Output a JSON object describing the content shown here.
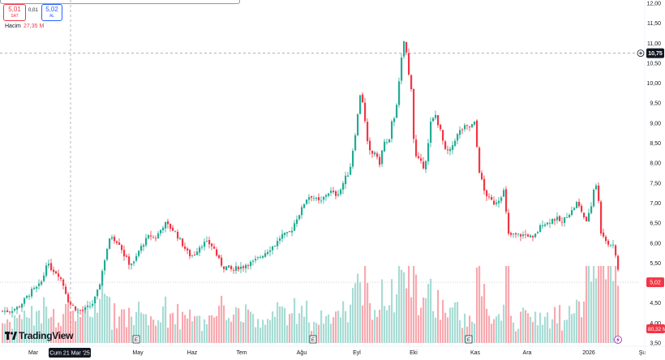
{
  "header": {
    "bid_price": "5,01",
    "bid_label": "SAT",
    "spread": "0,01",
    "ask_price": "5,02",
    "ask_label": "AL",
    "volume_label": "Hacim",
    "volume_value": "27,35 M"
  },
  "logo_text": "TradingView",
  "crosshair": {
    "date_label": "Cum 21 Mar '25",
    "price_label": "10,75"
  },
  "last_price_label": "5,02",
  "volume_axis_label": "80,32 M",
  "event_marker": "E",
  "colors": {
    "up": "#22ab94",
    "down": "#f23645",
    "up_volume": "#a8dcd5",
    "down_volume": "#f8aab0",
    "crosshair": "#9598a1"
  },
  "chart_data": {
    "type": "candlestick",
    "y_axis": {
      "ticks": [
        "12,00",
        "11,50",
        "11,00",
        "10,50",
        "10,00",
        "9,50",
        "9,00",
        "8,50",
        "8,00",
        "7,50",
        "7,00",
        "6,50",
        "6,00",
        "5,50",
        "5,00",
        "4,50",
        "4,00",
        "3,50"
      ],
      "range": [
        3.5,
        12.0
      ],
      "position": "right"
    },
    "x_axis": {
      "labels": [
        "Mar",
        "Nis",
        "May",
        "Haz",
        "Tem",
        "Ağu",
        "Eyl",
        "Eki",
        "Kas",
        "Ara",
        "2026",
        "Şu"
      ]
    },
    "event_markers_at": [
      "May",
      "Ağu",
      "Kas"
    ],
    "price_knots": [
      [
        0,
        4.3
      ],
      [
        10,
        4.3
      ],
      [
        22,
        4.4
      ],
      [
        30,
        4.6
      ],
      [
        38,
        4.8
      ],
      [
        46,
        4.9
      ],
      [
        52,
        5.1
      ],
      [
        56,
        5.5
      ],
      [
        60,
        5.4
      ],
      [
        66,
        5.3
      ],
      [
        72,
        5.2
      ],
      [
        78,
        4.9
      ],
      [
        84,
        4.5
      ],
      [
        90,
        4.4
      ],
      [
        96,
        4.3
      ],
      [
        104,
        4.35
      ],
      [
        112,
        4.45
      ],
      [
        118,
        4.7
      ],
      [
        122,
        5.0
      ],
      [
        126,
        5.4
      ],
      [
        130,
        5.8
      ],
      [
        136,
        6.2
      ],
      [
        140,
        6.1
      ],
      [
        146,
        6.0
      ],
      [
        152,
        5.7
      ],
      [
        158,
        5.5
      ],
      [
        164,
        5.5
      ],
      [
        170,
        5.8
      ],
      [
        176,
        6.0
      ],
      [
        184,
        6.2
      ],
      [
        190,
        6.1
      ],
      [
        196,
        6.3
      ],
      [
        202,
        6.5
      ],
      [
        208,
        6.4
      ],
      [
        214,
        6.3
      ],
      [
        220,
        6.1
      ],
      [
        226,
        5.9
      ],
      [
        232,
        5.7
      ],
      [
        238,
        5.7
      ],
      [
        244,
        5.9
      ],
      [
        250,
        6.0
      ],
      [
        256,
        6.0
      ],
      [
        262,
        5.9
      ],
      [
        268,
        5.6
      ],
      [
        274,
        5.4
      ],
      [
        280,
        5.4
      ],
      [
        286,
        5.3
      ],
      [
        292,
        5.4
      ],
      [
        298,
        5.4
      ],
      [
        304,
        5.5
      ],
      [
        310,
        5.5
      ],
      [
        316,
        5.6
      ],
      [
        322,
        5.7
      ],
      [
        328,
        5.8
      ],
      [
        334,
        5.9
      ],
      [
        340,
        6.0
      ],
      [
        346,
        6.2
      ],
      [
        352,
        6.2
      ],
      [
        358,
        6.3
      ],
      [
        364,
        6.6
      ],
      [
        370,
        6.8
      ],
      [
        376,
        7.1
      ],
      [
        382,
        7.2
      ],
      [
        388,
        7.1
      ],
      [
        394,
        7.0
      ],
      [
        400,
        7.2
      ],
      [
        406,
        7.3
      ],
      [
        412,
        7.2
      ],
      [
        418,
        7.3
      ],
      [
        424,
        7.6
      ],
      [
        430,
        7.8
      ],
      [
        436,
        8.6
      ],
      [
        440,
        9.2
      ],
      [
        444,
        9.9
      ],
      [
        448,
        9.2
      ],
      [
        452,
        8.5
      ],
      [
        456,
        8.2
      ],
      [
        462,
        8.3
      ],
      [
        466,
        7.9
      ],
      [
        470,
        8.3
      ],
      [
        474,
        8.6
      ],
      [
        478,
        8.4
      ],
      [
        482,
        9.0
      ],
      [
        486,
        9.2
      ],
      [
        490,
        9.8
      ],
      [
        494,
        10.6
      ],
      [
        498,
        11.2
      ],
      [
        502,
        10.3
      ],
      [
        506,
        9.9
      ],
      [
        510,
        8.2
      ],
      [
        514,
        8.1
      ],
      [
        518,
        8.0
      ],
      [
        522,
        7.9
      ],
      [
        526,
        8.3
      ],
      [
        530,
        9.0
      ],
      [
        536,
        9.2
      ],
      [
        542,
        8.8
      ],
      [
        548,
        8.3
      ],
      [
        554,
        8.3
      ],
      [
        560,
        8.6
      ],
      [
        566,
        8.8
      ],
      [
        572,
        8.9
      ],
      [
        578,
        8.9
      ],
      [
        584,
        9.0
      ],
      [
        590,
        7.8
      ],
      [
        596,
        7.3
      ],
      [
        602,
        7.1
      ],
      [
        608,
        7.0
      ],
      [
        614,
        7.1
      ],
      [
        620,
        7.3
      ],
      [
        626,
        6.2
      ],
      [
        632,
        6.2
      ],
      [
        638,
        6.2
      ],
      [
        644,
        6.2
      ],
      [
        650,
        6.2
      ],
      [
        656,
        6.1
      ],
      [
        662,
        6.3
      ],
      [
        668,
        6.5
      ],
      [
        674,
        6.5
      ],
      [
        680,
        6.6
      ],
      [
        686,
        6.6
      ],
      [
        692,
        6.5
      ],
      [
        698,
        6.7
      ],
      [
        704,
        6.8
      ],
      [
        710,
        7.0
      ],
      [
        716,
        6.8
      ],
      [
        722,
        6.5
      ],
      [
        728,
        6.9
      ],
      [
        732,
        7.5
      ],
      [
        736,
        7.4
      ],
      [
        740,
        6.2
      ],
      [
        744,
        6.1
      ],
      [
        748,
        6.0
      ],
      [
        752,
        6.0
      ],
      [
        756,
        5.9
      ],
      [
        760,
        5.5
      ],
      [
        763,
        5.05
      ]
    ]
  }
}
